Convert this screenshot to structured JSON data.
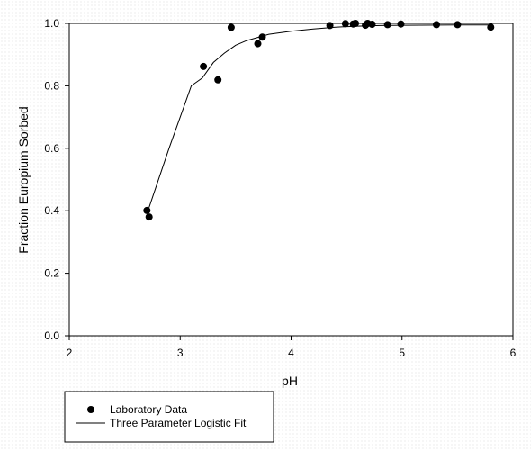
{
  "chart_data": {
    "type": "scatter",
    "xlabel": "pH",
    "ylabel": "Fraction Europium Sorbed",
    "xlim": [
      2,
      6
    ],
    "ylim": [
      0.0,
      1.0
    ],
    "xticks": [
      "2",
      "3",
      "4",
      "5",
      "6"
    ],
    "yticks": [
      "0.0",
      "0.2",
      "0.4",
      "0.6",
      "0.8",
      "1.0"
    ],
    "grid": false,
    "legend_position": "bottom-left, below plot",
    "series": [
      {
        "name": "Laboratory Data",
        "kind": "scatter",
        "color": "#000000",
        "x": [
          2.7,
          2.72,
          3.21,
          3.34,
          3.46,
          3.7,
          3.74,
          4.35,
          4.49,
          4.56,
          4.58,
          4.67,
          4.69,
          4.73,
          4.87,
          4.99,
          5.31,
          5.5,
          5.8
        ],
        "y": [
          0.401,
          0.38,
          0.862,
          0.819,
          0.987,
          0.935,
          0.956,
          0.993,
          0.999,
          0.998,
          1.0,
          0.994,
          1.0,
          0.997,
          0.996,
          0.998,
          0.996,
          0.996,
          0.988
        ]
      },
      {
        "name": "Three Parameter Logistic Fit",
        "kind": "line",
        "color": "#000000",
        "x": [
          2.7,
          2.8,
          2.9,
          3.0,
          3.1,
          3.2,
          3.3,
          3.4,
          3.5,
          3.6,
          3.7,
          3.8,
          4.0,
          4.2,
          4.4,
          4.6,
          4.8,
          5.0,
          5.5,
          5.8
        ],
        "y": [
          0.39,
          0.495,
          0.6,
          0.7,
          0.8,
          0.825,
          0.875,
          0.905,
          0.93,
          0.945,
          0.955,
          0.965,
          0.975,
          0.982,
          0.988,
          0.991,
          0.993,
          0.994,
          0.995,
          0.995
        ]
      }
    ]
  }
}
